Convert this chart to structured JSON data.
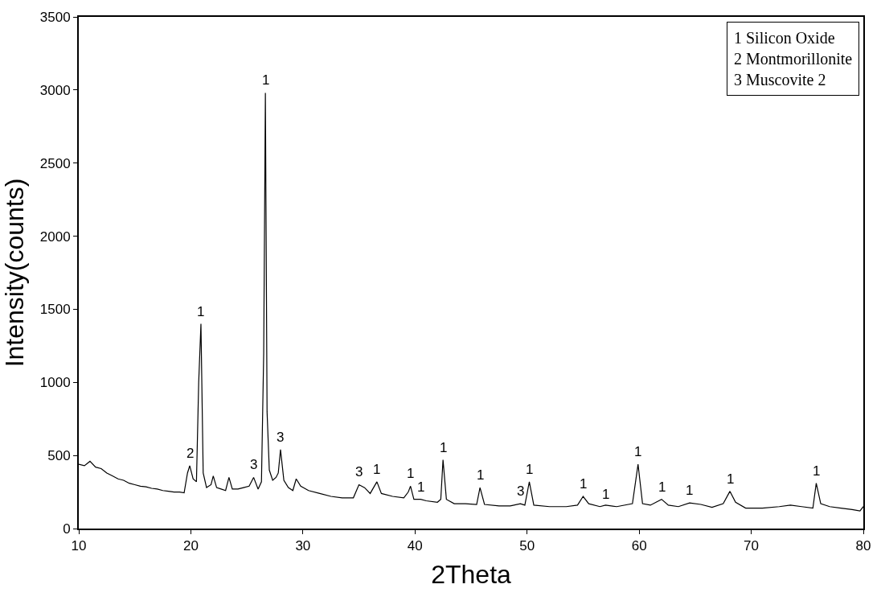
{
  "chart_data": {
    "type": "line",
    "xlabel": "2Theta",
    "ylabel": "Intensity(counts)",
    "xlim": [
      10,
      80
    ],
    "xticks": [
      10,
      20,
      30,
      40,
      50,
      60,
      70,
      80
    ],
    "ylim": [
      0,
      3500
    ],
    "yticks": [
      0,
      500,
      1000,
      1500,
      2000,
      2500,
      3000,
      3500
    ],
    "marker": "none",
    "line_style": "solid",
    "x": [
      10,
      10.5,
      11,
      11.5,
      12,
      12.5,
      13,
      13.5,
      14,
      14.5,
      15,
      15.5,
      16,
      16.5,
      17,
      17.5,
      18,
      18.5,
      19,
      19.4,
      19.7,
      19.9,
      20.2,
      20.5,
      20.7,
      20.9,
      21.1,
      21.4,
      21.8,
      22.0,
      22.3,
      22.7,
      23.1,
      23.4,
      23.7,
      24.2,
      24.7,
      25.2,
      25.6,
      26.0,
      26.3,
      26.5,
      26.65,
      26.8,
      27.0,
      27.3,
      27.6,
      27.8,
      28.0,
      28.3,
      28.7,
      29.1,
      29.4,
      29.8,
      30.5,
      31.5,
      32.5,
      33.5,
      34.5,
      35.0,
      35.5,
      36.0,
      36.6,
      37.0,
      38.0,
      39.0,
      39.4,
      39.6,
      39.9,
      40.5,
      41.0,
      42.0,
      42.3,
      42.5,
      42.8,
      43.5,
      44.5,
      45.5,
      45.8,
      46.2,
      47.5,
      48.5,
      49.4,
      49.8,
      50.2,
      50.6,
      52.0,
      53.5,
      54.5,
      55.0,
      55.5,
      56.5,
      57.0,
      58.0,
      59.4,
      59.9,
      60.3,
      61.0,
      62.0,
      62.6,
      63.5,
      64.5,
      65.5,
      66.5,
      67.5,
      68.1,
      68.6,
      69.5,
      71.0,
      72.5,
      73.5,
      74.5,
      75.5,
      75.8,
      76.2,
      77.0,
      78.0,
      79.0,
      79.7,
      80
    ],
    "values": [
      440,
      430,
      460,
      420,
      410,
      380,
      360,
      340,
      330,
      310,
      300,
      290,
      285,
      275,
      270,
      260,
      255,
      250,
      250,
      245,
      380,
      430,
      340,
      320,
      1000,
      1400,
      380,
      280,
      300,
      360,
      280,
      270,
      260,
      350,
      270,
      270,
      280,
      290,
      350,
      270,
      320,
      1200,
      2980,
      800,
      400,
      330,
      350,
      380,
      540,
      330,
      280,
      260,
      340,
      290,
      260,
      240,
      220,
      210,
      210,
      300,
      280,
      240,
      320,
      240,
      220,
      210,
      250,
      290,
      200,
      200,
      190,
      180,
      200,
      470,
      200,
      170,
      170,
      165,
      280,
      165,
      155,
      155,
      170,
      160,
      320,
      160,
      150,
      150,
      160,
      220,
      170,
      150,
      160,
      150,
      170,
      440,
      170,
      160,
      200,
      160,
      150,
      175,
      165,
      145,
      170,
      255,
      180,
      140,
      140,
      150,
      160,
      150,
      140,
      310,
      170,
      150,
      140,
      130,
      120,
      150
    ],
    "color": "#000000",
    "annotations": [
      "1 Silicon Oxide\n2 Montmorillonite\n3 Muscovite 2",
      {
        "text": "2",
        "x": 19.9,
        "y": 430
      },
      {
        "text": "1",
        "x": 20.9,
        "y": 1400
      },
      {
        "text": "3",
        "x": 25.6,
        "y": 350
      },
      {
        "text": "1",
        "x": 26.65,
        "y": 2980
      },
      {
        "text": "3",
        "x": 28.0,
        "y": 540
      },
      {
        "text": "3",
        "x": 35.0,
        "y": 300
      },
      {
        "text": "1",
        "x": 36.6,
        "y": 320
      },
      {
        "text": "1",
        "x": 39.6,
        "y": 290
      },
      {
        "text": "1",
        "x": 40.5,
        "y": 200
      },
      {
        "text": "1",
        "x": 42.5,
        "y": 470
      },
      {
        "text": "1",
        "x": 45.8,
        "y": 280
      },
      {
        "text": "3",
        "x": 49.4,
        "y": 170
      },
      {
        "text": "1",
        "x": 50.2,
        "y": 320
      },
      {
        "text": "1",
        "x": 55.0,
        "y": 220
      },
      {
        "text": "1",
        "x": 57.0,
        "y": 150
      },
      {
        "text": "1",
        "x": 59.9,
        "y": 440
      },
      {
        "text": "1",
        "x": 62.0,
        "y": 200
      },
      {
        "text": "1",
        "x": 64.5,
        "y": 175
      },
      {
        "text": "1",
        "x": 68.1,
        "y": 255
      },
      {
        "text": "1",
        "x": 75.8,
        "y": 310
      }
    ]
  }
}
